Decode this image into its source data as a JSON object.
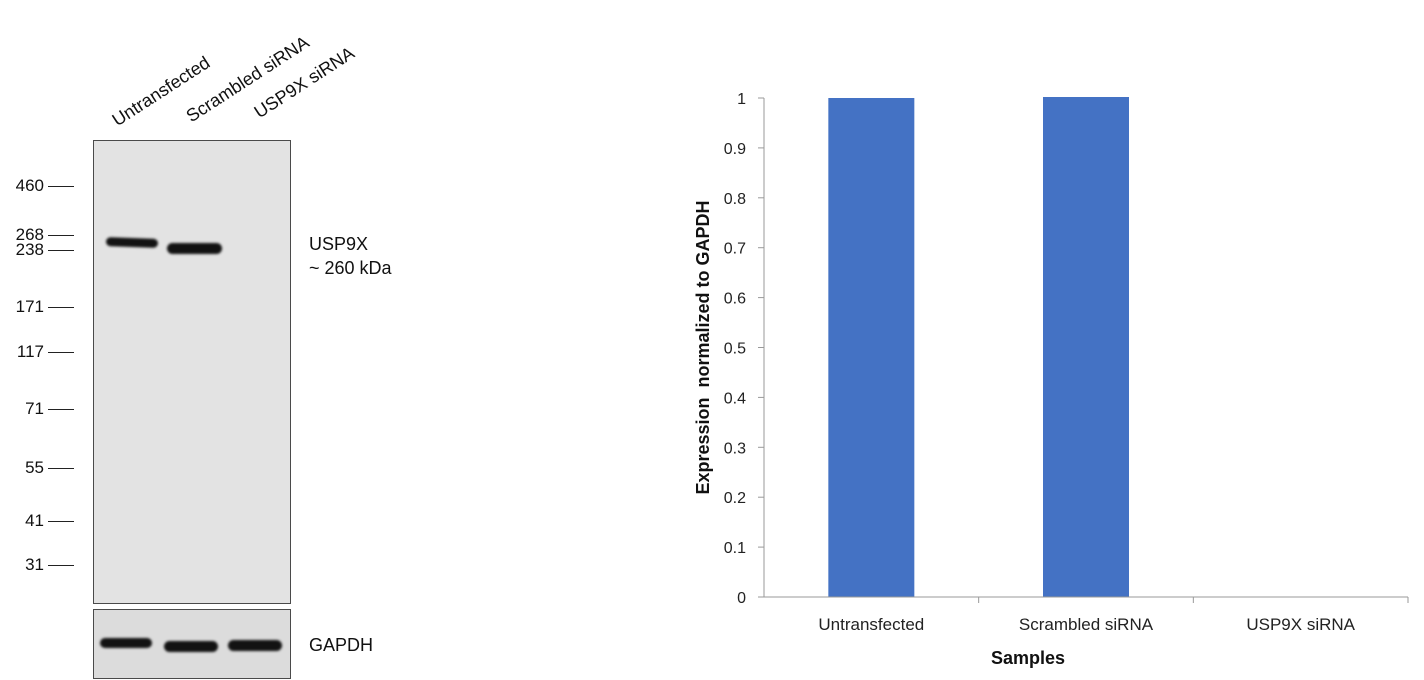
{
  "blot": {
    "lanes": [
      "Untransfected",
      "Scrambled siRNA",
      "USP9X siRNA"
    ],
    "markers": [
      "460",
      "268",
      "238",
      "171",
      "117",
      "71",
      "55",
      "41",
      "31"
    ],
    "target_label": "USP9X",
    "target_size": "~ 260 kDa",
    "loading_control": "GAPDH"
  },
  "chart_data": {
    "type": "bar",
    "categories": [
      "Untransfected",
      "Scrambled siRNA",
      "USP9X siRNA"
    ],
    "values": [
      1.0,
      1.002,
      0.0
    ],
    "xlabel": "Samples",
    "ylabel": "Expression  normalized to GAPDH",
    "ylim": [
      0,
      1
    ],
    "yticks": [
      "0",
      "0.1",
      "0.2",
      "0.3",
      "0.4",
      "0.5",
      "0.6",
      "0.7",
      "0.8",
      "0.9",
      "1"
    ],
    "bar_color": "#4472C4",
    "grid": false,
    "legend": "none"
  }
}
